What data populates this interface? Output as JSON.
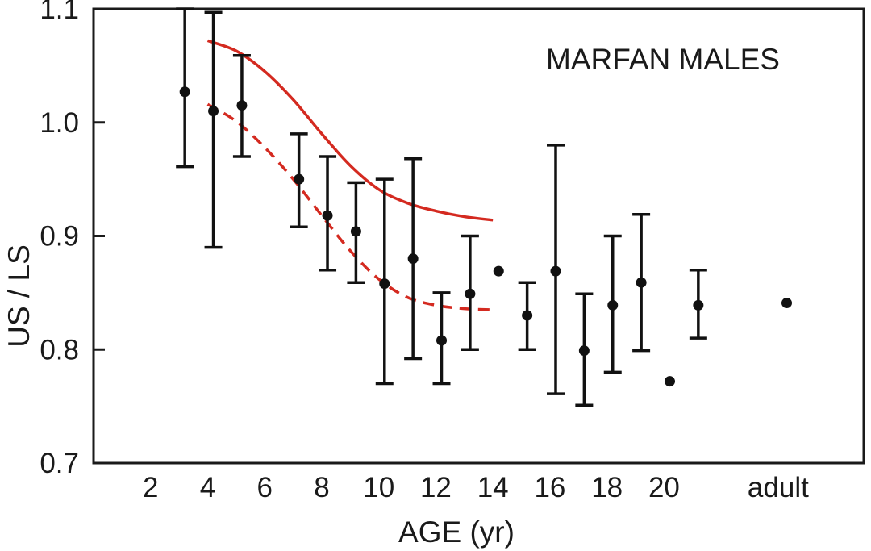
{
  "chart_data": {
    "type": "scatter",
    "title": "MARFAN MALES",
    "xlabel": "AGE  (yr)",
    "ylabel": "US / LS",
    "ylim": [
      0.7,
      1.1
    ],
    "xlim": [
      0,
      27
    ],
    "x_ticks": [
      {
        "value": 2,
        "label": "2"
      },
      {
        "value": 4,
        "label": "4"
      },
      {
        "value": 6,
        "label": "6"
      },
      {
        "value": 8,
        "label": "8"
      },
      {
        "value": 10,
        "label": "10"
      },
      {
        "value": 12,
        "label": "12"
      },
      {
        "value": 14,
        "label": "14"
      },
      {
        "value": 16,
        "label": "16"
      },
      {
        "value": 18,
        "label": "18"
      },
      {
        "value": 20,
        "label": "20"
      },
      {
        "value": 24,
        "label": "adult"
      }
    ],
    "y_ticks": [
      {
        "value": 0.7,
        "label": "0.7"
      },
      {
        "value": 0.8,
        "label": "0.8"
      },
      {
        "value": 0.9,
        "label": "0.9"
      },
      {
        "value": 1.0,
        "label": "1.0"
      },
      {
        "value": 1.1,
        "label": "1.1"
      }
    ],
    "points": [
      {
        "x": 3.2,
        "y": 1.027,
        "err_low": 0.961,
        "err_high": 1.1
      },
      {
        "x": 4.2,
        "y": 1.01,
        "err_low": 0.89,
        "err_high": 1.097
      },
      {
        "x": 5.2,
        "y": 1.015,
        "err_low": 0.97,
        "err_high": 1.059
      },
      {
        "x": 7.2,
        "y": 0.95,
        "err_low": 0.908,
        "err_high": 0.99
      },
      {
        "x": 8.2,
        "y": 0.918,
        "err_low": 0.87,
        "err_high": 0.97
      },
      {
        "x": 9.2,
        "y": 0.904,
        "err_low": 0.859,
        "err_high": 0.947
      },
      {
        "x": 10.2,
        "y": 0.858,
        "err_low": 0.77,
        "err_high": 0.95
      },
      {
        "x": 11.2,
        "y": 0.88,
        "err_low": 0.792,
        "err_high": 0.968
      },
      {
        "x": 12.2,
        "y": 0.808,
        "err_low": 0.77,
        "err_high": 0.85
      },
      {
        "x": 13.2,
        "y": 0.849,
        "err_low": 0.8,
        "err_high": 0.9
      },
      {
        "x": 14.2,
        "y": 0.869
      },
      {
        "x": 15.2,
        "y": 0.83,
        "err_low": 0.8,
        "err_high": 0.859
      },
      {
        "x": 16.2,
        "y": 0.869,
        "err_low": 0.761,
        "err_high": 0.98
      },
      {
        "x": 17.2,
        "y": 0.799,
        "err_low": 0.751,
        "err_high": 0.849
      },
      {
        "x": 18.2,
        "y": 0.839,
        "err_low": 0.78,
        "err_high": 0.9
      },
      {
        "x": 19.2,
        "y": 0.859,
        "err_low": 0.799,
        "err_high": 0.919
      },
      {
        "x": 20.2,
        "y": 0.772
      },
      {
        "x": 21.2,
        "y": 0.839,
        "err_low": 0.81,
        "err_high": 0.87
      },
      {
        "x": 24.3,
        "y": 0.841
      }
    ],
    "curves": [
      {
        "style": "solid",
        "color": "#d42a20",
        "points": [
          [
            4,
            1.072
          ],
          [
            5,
            1.063
          ],
          [
            6,
            1.045
          ],
          [
            7,
            1.02
          ],
          [
            8,
            0.99
          ],
          [
            9,
            0.962
          ],
          [
            10,
            0.941
          ],
          [
            11,
            0.929
          ],
          [
            12,
            0.922
          ],
          [
            13,
            0.917
          ],
          [
            14,
            0.914
          ]
        ]
      },
      {
        "style": "dashed",
        "color": "#d42a20",
        "points": [
          [
            4,
            1.016
          ],
          [
            5,
            1.001
          ],
          [
            6,
            0.978
          ],
          [
            7,
            0.95
          ],
          [
            8,
            0.918
          ],
          [
            9,
            0.887
          ],
          [
            10,
            0.862
          ],
          [
            11,
            0.846
          ],
          [
            12,
            0.839
          ],
          [
            13,
            0.836
          ],
          [
            14,
            0.835
          ]
        ]
      }
    ],
    "point_color": "#111111",
    "grid": false
  }
}
